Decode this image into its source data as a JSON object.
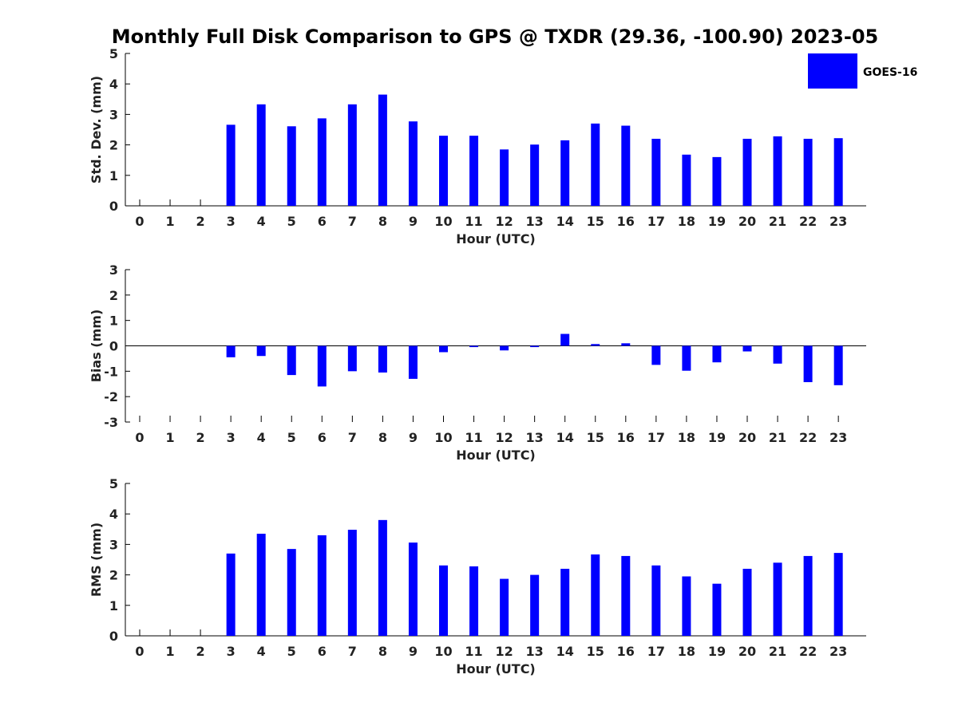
{
  "title": "Monthly Full Disk Comparison to GPS @ TXDR (29.36, -100.90) 2023-05",
  "legend": {
    "label": "GOES-16",
    "color": "#0000ff"
  },
  "chart_data": [
    {
      "type": "bar",
      "name": "std-dev",
      "title": "",
      "xlabel": "Hour (UTC)",
      "ylabel": "Std. Dev. (mm)",
      "ylim": [
        0,
        5
      ],
      "yticks": [
        0,
        1,
        2,
        3,
        4,
        5
      ],
      "categories": [
        "0",
        "1",
        "2",
        "3",
        "4",
        "5",
        "6",
        "7",
        "8",
        "9",
        "10",
        "11",
        "12",
        "13",
        "14",
        "15",
        "16",
        "17",
        "18",
        "19",
        "20",
        "21",
        "22",
        "23"
      ],
      "series": [
        {
          "name": "GOES-16",
          "color": "#0000ff",
          "values": [
            null,
            null,
            null,
            2.66,
            3.33,
            2.61,
            2.87,
            3.33,
            3.65,
            2.77,
            2.3,
            2.3,
            1.85,
            2.01,
            2.15,
            2.7,
            2.63,
            2.2,
            1.68,
            1.6,
            2.2,
            2.28,
            2.2,
            2.22
          ]
        }
      ]
    },
    {
      "type": "bar",
      "name": "bias",
      "title": "",
      "xlabel": "Hour (UTC)",
      "ylabel": "Bias (mm)",
      "ylim": [
        -3,
        3
      ],
      "yticks": [
        -3,
        -2,
        -1,
        0,
        1,
        2,
        3
      ],
      "categories": [
        "0",
        "1",
        "2",
        "3",
        "4",
        "5",
        "6",
        "7",
        "8",
        "9",
        "10",
        "11",
        "12",
        "13",
        "14",
        "15",
        "16",
        "17",
        "18",
        "19",
        "20",
        "21",
        "22",
        "23"
      ],
      "series": [
        {
          "name": "GOES-16",
          "color": "#0000ff",
          "values": [
            null,
            null,
            null,
            -0.45,
            -0.4,
            -1.15,
            -1.6,
            -1.0,
            -1.05,
            -1.3,
            -0.25,
            -0.05,
            -0.18,
            -0.05,
            0.47,
            0.07,
            0.1,
            -0.75,
            -0.98,
            -0.65,
            -0.22,
            -0.7,
            -1.43,
            -1.55
          ]
        }
      ]
    },
    {
      "type": "bar",
      "name": "rms",
      "title": "",
      "xlabel": "Hour (UTC)",
      "ylabel": "RMS (mm)",
      "ylim": [
        0,
        5
      ],
      "yticks": [
        0,
        1,
        2,
        3,
        4,
        5
      ],
      "categories": [
        "0",
        "1",
        "2",
        "3",
        "4",
        "5",
        "6",
        "7",
        "8",
        "9",
        "10",
        "11",
        "12",
        "13",
        "14",
        "15",
        "16",
        "17",
        "18",
        "19",
        "20",
        "21",
        "22",
        "23"
      ],
      "series": [
        {
          "name": "GOES-16",
          "color": "#0000ff",
          "values": [
            null,
            null,
            null,
            2.7,
            3.35,
            2.85,
            3.3,
            3.48,
            3.8,
            3.06,
            2.31,
            2.28,
            1.87,
            2.0,
            2.2,
            2.67,
            2.62,
            2.31,
            1.95,
            1.71,
            2.2,
            2.4,
            2.62,
            2.72
          ]
        }
      ]
    }
  ]
}
